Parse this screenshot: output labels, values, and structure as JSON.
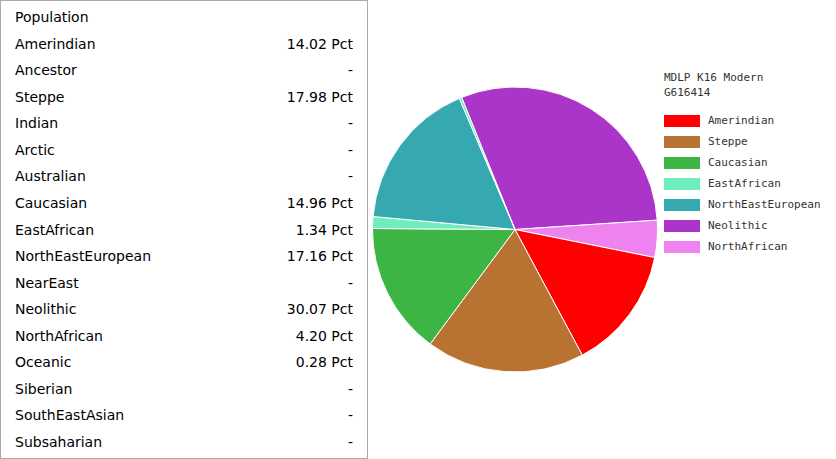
{
  "chart_data": {
    "type": "pie",
    "categories": [
      "Neolithic",
      "NorthAfrican",
      "Amerindian",
      "Steppe",
      "Caucasian",
      "EastAfrican",
      "NorthEastEuropean",
      "Oceanic"
    ],
    "values": [
      30.07,
      4.2,
      14.02,
      17.98,
      14.96,
      1.34,
      17.16,
      0.28
    ],
    "colors": [
      "#ab35c8",
      "#ee82ee",
      "#ff0000",
      "#b87333",
      "#3cb544",
      "#6deebc",
      "#35a8b0",
      "#6deebc"
    ],
    "legend": "right",
    "legend_title": [
      "MDLP K16 Modern",
      "G616414"
    ],
    "legend_entries": [
      "Amerindian",
      "Steppe",
      "Caucasian",
      "EastAfrican",
      "NorthEastEuropean",
      "Neolithic",
      "NorthAfrican"
    ]
  },
  "table_rows": [
    [
      "Population"
    ],
    [
      "Amerindian",
      "14.02 Pct"
    ],
    [
      "Ancestor",
      "-"
    ],
    [
      "Steppe",
      "17.98 Pct"
    ],
    [
      "Indian",
      "-"
    ],
    [
      "Arctic",
      "-"
    ],
    [
      "Australian",
      "-"
    ],
    [
      "Caucasian",
      "14.96 Pct"
    ],
    [
      "EastAfrican",
      "1.34 Pct"
    ],
    [
      "NorthEastEuropean",
      "17.16 Pct"
    ],
    [
      "NearEast",
      "-"
    ],
    [
      "Neolithic",
      "30.07 Pct"
    ],
    [
      "NorthAfrican",
      "4.20 Pct"
    ],
    [
      "Oceanic",
      "0.28 Pct"
    ],
    [
      "Siberian",
      "-"
    ],
    [
      "SouthEastAsian",
      "-"
    ],
    [
      "Subsaharian",
      "-"
    ]
  ]
}
